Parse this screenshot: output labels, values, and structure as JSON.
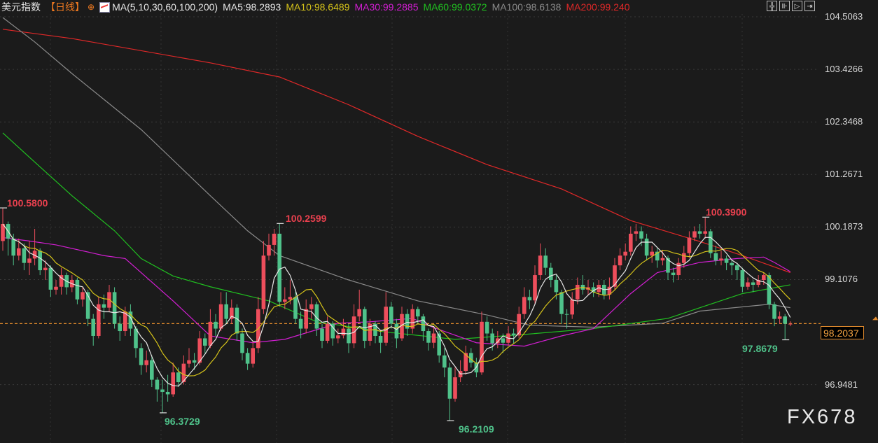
{
  "header": {
    "symbol": "美元指数",
    "period": "【日线】",
    "period_icon": "circle-plus-icon",
    "ma_params": "MA(5,10,30,60,100,200)",
    "ma5": "MA5:98.2893",
    "ma10": "MA10:98.6489",
    "ma30": "MA30:99.2885",
    "ma60": "MA60:99.0372",
    "ma100": "MA100:98.6138",
    "ma200": "MA200:99.240"
  },
  "toolbar": [
    "crosshair-icon",
    "zoom-in-icon",
    "play-icon",
    "move-right-icon"
  ],
  "watermark": "FX678",
  "colors": {
    "up": "#ee4e5c",
    "down": "#4fc28a",
    "ma5": "#e6e6e6",
    "ma10": "#d4c21a",
    "ma30": "#d21ed2",
    "ma60": "#20c020",
    "ma100": "#8a8a8a",
    "ma200": "#e02828",
    "current": "#e08a2c",
    "background": "#1b1b1b"
  },
  "chart_data": {
    "type": "candlestick",
    "ylim": [
      96.3,
      104.5063
    ],
    "y_ticks": [
      "104.5063",
      "103.4266",
      "102.3468",
      "101.2671",
      "100.1873",
      "99.1076",
      "96.9481"
    ],
    "current_price": "98.2037",
    "annotations": {
      "high1": "100.5800",
      "low1": "96.3729",
      "high2": "100.2599",
      "low2": "96.2109",
      "high3": "100.3900",
      "low3": "97.8679"
    },
    "candles": [
      [
        99.9,
        100.58,
        99.7,
        100.25
      ],
      [
        100.25,
        100.3,
        99.6,
        99.95
      ],
      [
        99.95,
        100.05,
        99.4,
        99.6
      ],
      [
        99.6,
        99.95,
        99.5,
        99.75
      ],
      [
        99.75,
        99.85,
        99.3,
        99.45
      ],
      [
        99.45,
        99.9,
        99.2,
        99.54
      ],
      [
        99.54,
        100.15,
        99.4,
        99.7
      ],
      [
        99.7,
        99.75,
        99.2,
        99.3
      ],
      [
        99.3,
        99.5,
        99.1,
        99.35
      ],
      [
        99.35,
        99.4,
        98.75,
        98.9
      ],
      [
        98.9,
        99.1,
        98.8,
        98.96
      ],
      [
        98.96,
        99.35,
        98.8,
        99.2
      ],
      [
        99.2,
        99.25,
        98.8,
        98.95
      ],
      [
        98.95,
        99.2,
        98.85,
        99.1
      ],
      [
        99.1,
        99.15,
        98.6,
        98.7
      ],
      [
        98.7,
        98.95,
        98.55,
        98.85
      ],
      [
        98.85,
        98.9,
        98.15,
        98.3
      ],
      [
        98.3,
        98.4,
        97.75,
        97.95
      ],
      [
        97.95,
        98.75,
        97.9,
        98.6
      ],
      [
        98.6,
        98.8,
        98.3,
        98.53
      ],
      [
        98.53,
        99.0,
        98.45,
        98.85
      ],
      [
        98.85,
        98.95,
        98.1,
        98.2
      ],
      [
        98.2,
        98.35,
        97.85,
        98.05
      ],
      [
        98.05,
        98.55,
        97.95,
        98.45
      ],
      [
        98.45,
        98.6,
        97.95,
        98.1
      ],
      [
        98.1,
        98.15,
        97.5,
        97.7
      ],
      [
        97.7,
        97.8,
        97.15,
        97.35
      ],
      [
        97.35,
        97.65,
        97.2,
        97.45
      ],
      [
        97.45,
        97.55,
        96.9,
        97.05
      ],
      [
        97.05,
        97.1,
        96.6,
        96.85
      ],
      [
        96.85,
        97.05,
        96.37,
        96.8
      ],
      [
        96.8,
        97.15,
        96.6,
        96.75
      ],
      [
        96.75,
        97.4,
        96.7,
        97.2
      ],
      [
        97.2,
        97.3,
        96.9,
        97.0
      ],
      [
        97.0,
        97.55,
        96.95,
        97.38
      ],
      [
        97.38,
        97.7,
        97.3,
        97.45
      ],
      [
        97.45,
        97.6,
        97.25,
        97.4
      ],
      [
        97.4,
        98.05,
        97.35,
        97.9
      ],
      [
        97.9,
        98.0,
        97.6,
        97.75
      ],
      [
        97.75,
        98.5,
        97.7,
        98.24
      ],
      [
        98.24,
        98.4,
        97.95,
        98.1
      ],
      [
        98.1,
        98.85,
        98.05,
        98.6
      ],
      [
        98.6,
        98.85,
        98.2,
        98.3
      ],
      [
        98.3,
        98.7,
        98.2,
        98.53
      ],
      [
        98.53,
        98.6,
        97.85,
        98.0
      ],
      [
        98.0,
        98.1,
        97.45,
        97.6
      ],
      [
        97.6,
        97.7,
        97.25,
        97.38
      ],
      [
        97.38,
        97.85,
        97.3,
        97.7
      ],
      [
        97.7,
        98.75,
        97.6,
        98.5
      ],
      [
        98.5,
        99.9,
        98.4,
        99.6
      ],
      [
        99.6,
        100.05,
        99.5,
        99.82
      ],
      [
        99.82,
        100.15,
        99.6,
        100.05
      ],
      [
        100.05,
        100.26,
        98.55,
        98.65
      ],
      [
        98.65,
        98.95,
        98.5,
        98.7
      ],
      [
        98.7,
        99.1,
        98.6,
        98.75
      ],
      [
        98.75,
        98.85,
        98.2,
        98.3
      ],
      [
        98.3,
        98.45,
        97.9,
        98.1
      ],
      [
        98.1,
        98.7,
        98.0,
        98.5
      ],
      [
        98.5,
        98.75,
        98.3,
        98.6
      ],
      [
        98.6,
        98.65,
        97.95,
        98.1
      ],
      [
        98.1,
        98.2,
        97.7,
        97.85
      ],
      [
        97.85,
        98.35,
        97.8,
        98.2
      ],
      [
        98.2,
        98.25,
        97.75,
        97.9
      ],
      [
        97.9,
        98.1,
        97.8,
        97.96
      ],
      [
        97.96,
        98.3,
        97.9,
        98.1
      ],
      [
        98.1,
        98.2,
        97.6,
        97.8
      ],
      [
        97.8,
        98.6,
        97.7,
        98.35
      ],
      [
        98.35,
        98.9,
        98.25,
        98.5
      ],
      [
        98.5,
        98.55,
        97.7,
        97.85
      ],
      [
        97.85,
        98.3,
        97.75,
        98.2
      ],
      [
        98.2,
        98.25,
        97.8,
        97.95
      ],
      [
        97.95,
        98.05,
        97.6,
        97.81
      ],
      [
        97.81,
        98.85,
        97.75,
        98.55
      ],
      [
        98.55,
        98.65,
        98.1,
        98.2
      ],
      [
        98.2,
        98.3,
        97.7,
        97.9
      ],
      [
        97.9,
        98.55,
        97.85,
        98.4
      ],
      [
        98.4,
        98.5,
        97.95,
        98.1
      ],
      [
        98.1,
        98.6,
        98.0,
        98.5
      ],
      [
        98.5,
        98.55,
        98.2,
        98.35
      ],
      [
        98.35,
        98.4,
        97.85,
        98.05
      ],
      [
        98.05,
        98.1,
        97.65,
        97.81
      ],
      [
        97.81,
        98.15,
        97.7,
        98.0
      ],
      [
        98.0,
        98.05,
        97.4,
        97.55
      ],
      [
        97.55,
        97.7,
        97.1,
        97.3
      ],
      [
        97.3,
        97.4,
        96.21,
        96.66
      ],
      [
        96.66,
        97.3,
        96.6,
        97.1
      ],
      [
        97.1,
        97.45,
        97.0,
        97.23
      ],
      [
        97.23,
        97.75,
        97.15,
        97.6
      ],
      [
        97.6,
        97.7,
        97.3,
        97.4
      ],
      [
        97.4,
        97.5,
        97.1,
        97.2
      ],
      [
        97.2,
        98.45,
        97.15,
        98.24
      ],
      [
        98.24,
        98.35,
        97.85,
        98.0
      ],
      [
        98.0,
        98.1,
        97.65,
        97.8
      ],
      [
        97.8,
        98.05,
        97.7,
        97.9
      ],
      [
        97.9,
        98.0,
        97.6,
        97.81
      ],
      [
        97.81,
        98.15,
        97.75,
        98.0
      ],
      [
        98.0,
        98.1,
        97.8,
        97.96
      ],
      [
        97.96,
        98.55,
        97.9,
        98.4
      ],
      [
        98.4,
        98.95,
        98.3,
        98.75
      ],
      [
        98.75,
        98.9,
        98.5,
        98.68
      ],
      [
        98.68,
        99.4,
        98.6,
        99.2
      ],
      [
        99.2,
        99.85,
        99.1,
        99.6
      ],
      [
        99.6,
        99.75,
        99.2,
        99.35
      ],
      [
        99.35,
        99.45,
        98.95,
        99.1
      ],
      [
        99.1,
        99.2,
        98.7,
        98.85
      ],
      [
        98.85,
        98.9,
        98.2,
        98.4
      ],
      [
        98.4,
        98.5,
        98.1,
        98.39
      ],
      [
        98.39,
        98.85,
        98.3,
        98.7
      ],
      [
        98.7,
        99.15,
        98.6,
        99.0
      ],
      [
        99.0,
        99.2,
        98.8,
        98.9
      ],
      [
        98.9,
        99.1,
        98.8,
        98.95
      ],
      [
        98.95,
        99.05,
        98.75,
        98.85
      ],
      [
        98.85,
        99.1,
        98.75,
        99.0
      ],
      [
        99.0,
        99.1,
        98.7,
        98.8
      ],
      [
        98.8,
        99.15,
        98.7,
        98.96
      ],
      [
        98.96,
        99.55,
        98.9,
        99.4
      ],
      [
        99.4,
        99.75,
        99.3,
        99.6
      ],
      [
        99.6,
        99.85,
        99.5,
        99.68
      ],
      [
        99.68,
        100.2,
        99.6,
        100.05
      ],
      [
        100.05,
        100.25,
        99.9,
        100.1
      ],
      [
        100.1,
        100.2,
        99.8,
        99.95
      ],
      [
        99.95,
        100.05,
        99.5,
        99.6
      ],
      [
        99.6,
        99.8,
        99.45,
        99.68
      ],
      [
        99.68,
        99.75,
        99.35,
        99.5
      ],
      [
        99.5,
        99.7,
        99.4,
        99.55
      ],
      [
        99.55,
        99.6,
        99.1,
        99.25
      ],
      [
        99.25,
        99.35,
        99.05,
        99.2
      ],
      [
        99.2,
        99.55,
        99.1,
        99.45
      ],
      [
        99.45,
        99.8,
        99.35,
        99.65
      ],
      [
        99.65,
        100.1,
        99.55,
        99.97
      ],
      [
        99.97,
        100.2,
        99.9,
        100.1
      ],
      [
        100.1,
        100.25,
        99.95,
        100.05
      ],
      [
        100.05,
        100.39,
        99.95,
        100.1
      ],
      [
        100.1,
        100.15,
        99.55,
        99.65
      ],
      [
        99.65,
        99.8,
        99.4,
        99.5
      ],
      [
        99.5,
        99.7,
        99.4,
        99.54
      ],
      [
        99.54,
        99.6,
        99.3,
        99.45
      ],
      [
        99.45,
        99.5,
        99.2,
        99.4
      ],
      [
        99.4,
        99.45,
        99.1,
        99.3
      ],
      [
        99.3,
        99.35,
        98.85,
        98.96
      ],
      [
        98.96,
        99.15,
        98.9,
        99.05
      ],
      [
        99.05,
        99.1,
        98.85,
        99.0
      ],
      [
        99.0,
        99.2,
        98.95,
        99.1
      ],
      [
        99.1,
        99.25,
        99.0,
        99.2
      ],
      [
        99.2,
        99.25,
        98.5,
        98.6
      ],
      [
        98.6,
        98.65,
        98.15,
        98.3
      ],
      [
        98.3,
        98.45,
        98.2,
        98.35
      ],
      [
        98.35,
        98.4,
        97.87,
        98.2
      ],
      [
        98.2,
        98.25,
        98.15,
        98.2
      ]
    ],
    "ma_lines": {
      "ma30": [
        [
          0,
          99.97
        ],
        [
          5,
          99.9
        ],
        [
          10,
          99.82
        ],
        [
          19,
          99.6
        ],
        [
          23,
          99.54
        ],
        [
          32,
          98.67
        ],
        [
          39,
          97.95
        ],
        [
          47,
          97.81
        ],
        [
          53,
          97.88
        ],
        [
          63,
          98.21
        ],
        [
          69,
          98.24
        ],
        [
          77,
          98.31
        ],
        [
          81,
          98.12
        ],
        [
          89,
          97.81
        ],
        [
          98,
          97.74
        ],
        [
          105,
          97.95
        ],
        [
          111,
          98.1
        ],
        [
          118,
          98.82
        ],
        [
          123,
          99.25
        ],
        [
          131,
          99.46
        ],
        [
          138,
          99.54
        ],
        [
          143,
          99.57
        ],
        [
          145,
          99.46
        ],
        [
          148,
          99.27
        ]
      ],
      "ma60": [
        [
          0,
          102.12
        ],
        [
          5,
          101.62
        ],
        [
          13,
          100.83
        ],
        [
          21,
          100.11
        ],
        [
          26,
          99.54
        ],
        [
          32,
          99.18
        ],
        [
          39,
          98.96
        ],
        [
          50,
          98.67
        ],
        [
          59,
          98.24
        ],
        [
          72,
          98.03
        ],
        [
          85,
          97.88
        ],
        [
          98,
          97.98
        ],
        [
          111,
          98.1
        ],
        [
          125,
          98.31
        ],
        [
          131,
          98.53
        ],
        [
          139,
          98.82
        ],
        [
          148,
          99.0
        ]
      ],
      "ma100": [
        [
          0,
          104.49
        ],
        [
          6,
          103.99
        ],
        [
          13,
          103.34
        ],
        [
          26,
          102.19
        ],
        [
          39,
          100.83
        ],
        [
          46,
          100.11
        ],
        [
          52,
          99.6
        ],
        [
          65,
          99.1
        ],
        [
          78,
          98.67
        ],
        [
          91,
          98.38
        ],
        [
          99,
          98.17
        ],
        [
          111,
          98.13
        ],
        [
          124,
          98.21
        ],
        [
          131,
          98.46
        ],
        [
          144,
          98.6
        ],
        [
          148,
          98.53
        ]
      ],
      "ma200": [
        [
          0,
          104.25
        ],
        [
          13,
          104.06
        ],
        [
          39,
          103.56
        ],
        [
          52,
          103.27
        ],
        [
          65,
          102.7
        ],
        [
          78,
          102.05
        ],
        [
          91,
          101.47
        ],
        [
          105,
          100.97
        ],
        [
          118,
          100.32
        ],
        [
          131,
          99.89
        ],
        [
          139,
          99.6
        ],
        [
          148,
          99.25
        ]
      ]
    }
  }
}
